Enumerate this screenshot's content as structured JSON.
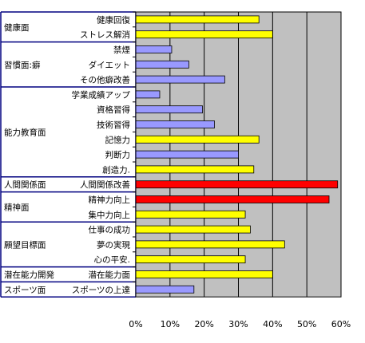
{
  "chart_data": {
    "type": "bar",
    "orientation": "horizontal",
    "title": "",
    "xlabel": "",
    "ylabel": "",
    "xlim": [
      0,
      60
    ],
    "x_ticks": [
      "0%",
      "10%",
      "20%",
      "30%",
      "40%",
      "50%",
      "60%"
    ],
    "grid": "vertical",
    "plot_background": "#c0c0c0",
    "colors": {
      "yellow": "#ffff00",
      "blue": "#9999ff",
      "red": "#ff0000",
      "frame": "#000080"
    },
    "groups": [
      {
        "name": "健康面",
        "items": [
          {
            "label": "健康回復",
            "value": 36,
            "color": "yellow"
          },
          {
            "label": "ストレス解消",
            "value": 40,
            "color": "yellow"
          }
        ]
      },
      {
        "name": "習慣面:癖",
        "items": [
          {
            "label": "禁煙",
            "value": 10.5,
            "color": "blue"
          },
          {
            "label": "ダイエット",
            "value": 15.5,
            "color": "blue"
          },
          {
            "label": "その他癖改善",
            "value": 26,
            "color": "blue"
          }
        ]
      },
      {
        "name": "能力教育面",
        "items": [
          {
            "label": "学業成績アップ",
            "value": 7,
            "color": "blue"
          },
          {
            "label": "資格習得",
            "value": 19.5,
            "color": "blue"
          },
          {
            "label": "技術習得",
            "value": 23,
            "color": "blue"
          },
          {
            "label": "記憶力",
            "value": 36,
            "color": "yellow"
          },
          {
            "label": "判断力",
            "value": 30,
            "color": "blue"
          },
          {
            "label": "創造力.",
            "value": 34.5,
            "color": "yellow"
          }
        ]
      },
      {
        "name": "人間関係面",
        "items": [
          {
            "label": "人間関係改善",
            "value": 59,
            "color": "red"
          }
        ]
      },
      {
        "name": "精神面",
        "items": [
          {
            "label": "精神力向上",
            "value": 56.5,
            "color": "red"
          },
          {
            "label": "集中力向上",
            "value": 32,
            "color": "yellow"
          }
        ]
      },
      {
        "name": "願望目標面",
        "items": [
          {
            "label": "仕事の成功",
            "value": 33.5,
            "color": "yellow"
          },
          {
            "label": "夢の実現",
            "value": 43.5,
            "color": "yellow"
          },
          {
            "label": "心の平安.",
            "value": 32,
            "color": "yellow"
          }
        ]
      },
      {
        "name": "潜在能力開発",
        "items": [
          {
            "label": "潜在能力面",
            "value": 40,
            "color": "yellow"
          }
        ]
      },
      {
        "name": "スポーツ面",
        "items": [
          {
            "label": "スポーツの上達",
            "value": 17,
            "color": "blue"
          }
        ]
      }
    ]
  }
}
